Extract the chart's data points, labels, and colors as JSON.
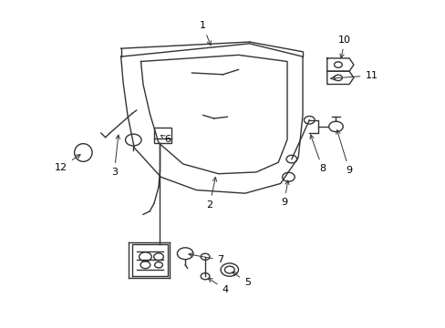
{
  "background_color": "#ffffff",
  "fig_width": 4.89,
  "fig_height": 3.6,
  "dpi": 100,
  "line_color": "#333333",
  "label_fontsize": 8,
  "label_color": "#000000"
}
